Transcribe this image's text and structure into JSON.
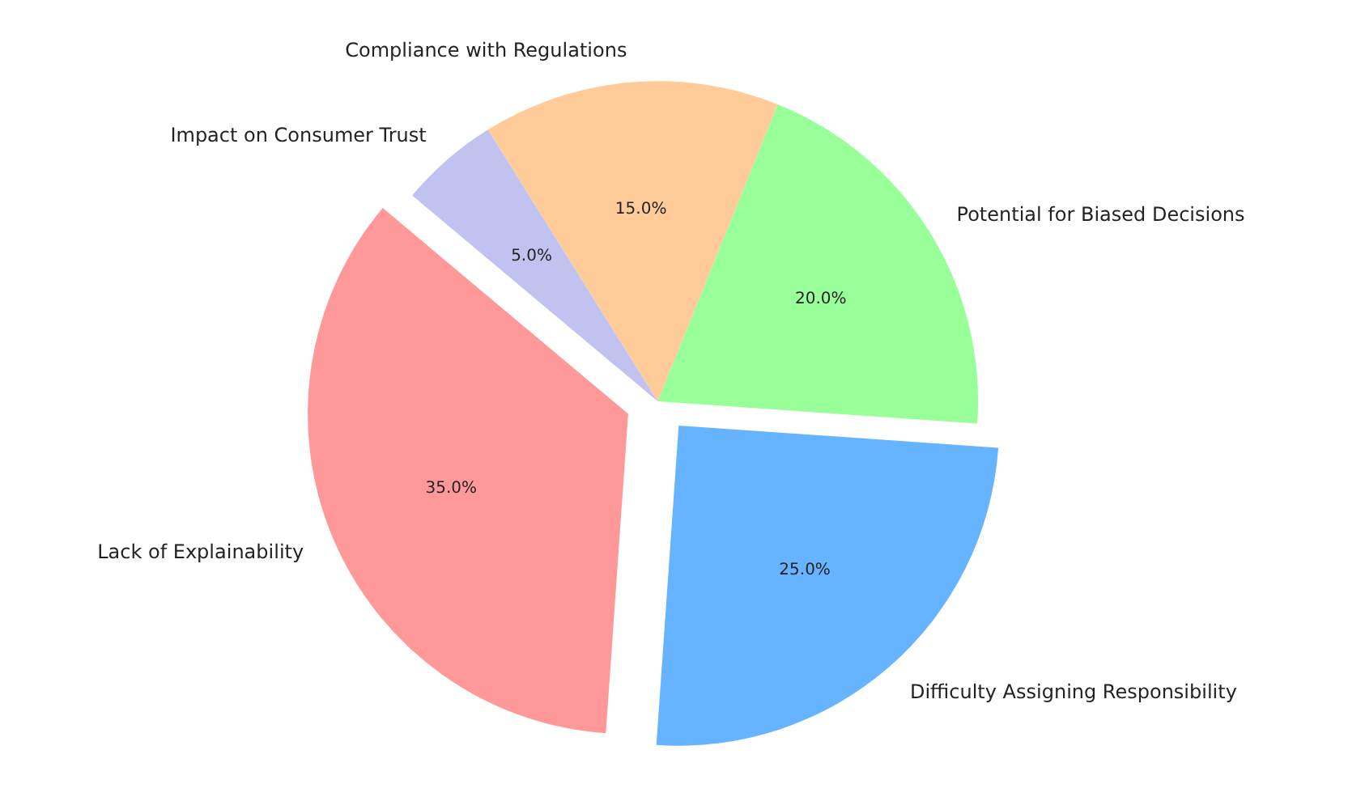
{
  "chart_data": {
    "type": "pie",
    "categories": [
      "Lack of Explainability",
      "Difficulty Assigning Responsibility",
      "Potential for Biased Decisions",
      "Compliance with Regulations",
      "Impact on Consumer Trust"
    ],
    "values": [
      35,
      25,
      20,
      15,
      5
    ],
    "colors": [
      "#ff9999",
      "#66b3ff",
      "#99ff99",
      "#ffcc99",
      "#c2c2f0"
    ],
    "value_labels": [
      "35.0%",
      "25.0%",
      "20.0%",
      "15.0%",
      "5.0%"
    ]
  }
}
